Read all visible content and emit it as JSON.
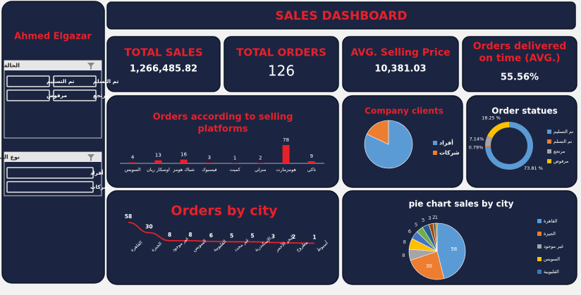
{
  "sidebar": {
    "name": "Ahmed Elgazar",
    "slicers": [
      {
        "title": "الحالة",
        "items": [
          "تم التسلم",
          "تم التسليم",
          "مرتجع",
          "مرفوض"
        ]
      },
      {
        "title": "نوع العميل",
        "items": [
          "أفراد",
          "شركات"
        ]
      }
    ]
  },
  "header": {
    "title": "SALES DASHBOARD"
  },
  "kpis": [
    {
      "label": "TOTAL SALES",
      "value": "1,266,485.82"
    },
    {
      "label": "TOTAL ORDERS",
      "value": "126"
    },
    {
      "label": "AVG. Selling Price",
      "value": "10,381.03"
    },
    {
      "label": "Orders delivered on time (AVG.)",
      "value": "55.56%"
    }
  ],
  "chart_data": [
    {
      "type": "bar",
      "title": "Orders according to selling platforms",
      "color": "#e8202a",
      "categories": [
        "السويس",
        "اوسكار ريان",
        "شباك هومز",
        "فيسبوك",
        "كميت",
        "منزلي",
        "هومزمارت",
        "تاكي"
      ],
      "values": [
        4,
        13,
        16,
        3,
        1,
        2,
        78,
        9
      ]
    },
    {
      "type": "pie",
      "title": "Company clients",
      "categories": [
        "أفراد",
        "شركات"
      ],
      "colors": [
        "#5b9bd5",
        "#ed7d31"
      ],
      "values": [
        82,
        18
      ]
    },
    {
      "type": "donut",
      "title": "Order statues",
      "categories": [
        "تم التسليم",
        "تم التسلم",
        "مرتجع",
        "مرفوض"
      ],
      "colors": [
        "#5b9bd5",
        "#ed7d31",
        "#a5a5a5",
        "#ffc000"
      ],
      "values": [
        73.81,
        0.79,
        7.14,
        18.25
      ],
      "value_labels": [
        "73.81 %",
        "0.79%",
        "7.14%",
        "18.25 %"
      ]
    },
    {
      "type": "line",
      "title": "Orders by city",
      "color": "#e8202a",
      "categories": [
        "القاهرة",
        "الجيزة",
        "غير موجود",
        "السويس",
        "القليوبية",
        "غير محدد",
        "الإسكندرية",
        "البحر الأحمر",
        "مطروح",
        "أسيوط"
      ],
      "values": [
        58,
        30,
        8,
        8,
        6,
        5,
        5,
        3,
        2,
        1
      ]
    },
    {
      "type": "pie",
      "title": "pie chart sales by city",
      "categories": [
        "القاهرة",
        "الجيزة",
        "غير موجود",
        "السويس",
        "القليوبية",
        null,
        null,
        null,
        null,
        null
      ],
      "colors": [
        "#5b9bd5",
        "#ed7d31",
        "#a5a5a5",
        "#ffc000",
        "#4472c4",
        "#70ad47",
        "#255e91",
        "#9e480e",
        "#636363",
        "#997300"
      ],
      "values": [
        58,
        30,
        8,
        8,
        6,
        5,
        5,
        3,
        2,
        1
      ],
      "labels_inside": true
    }
  ]
}
